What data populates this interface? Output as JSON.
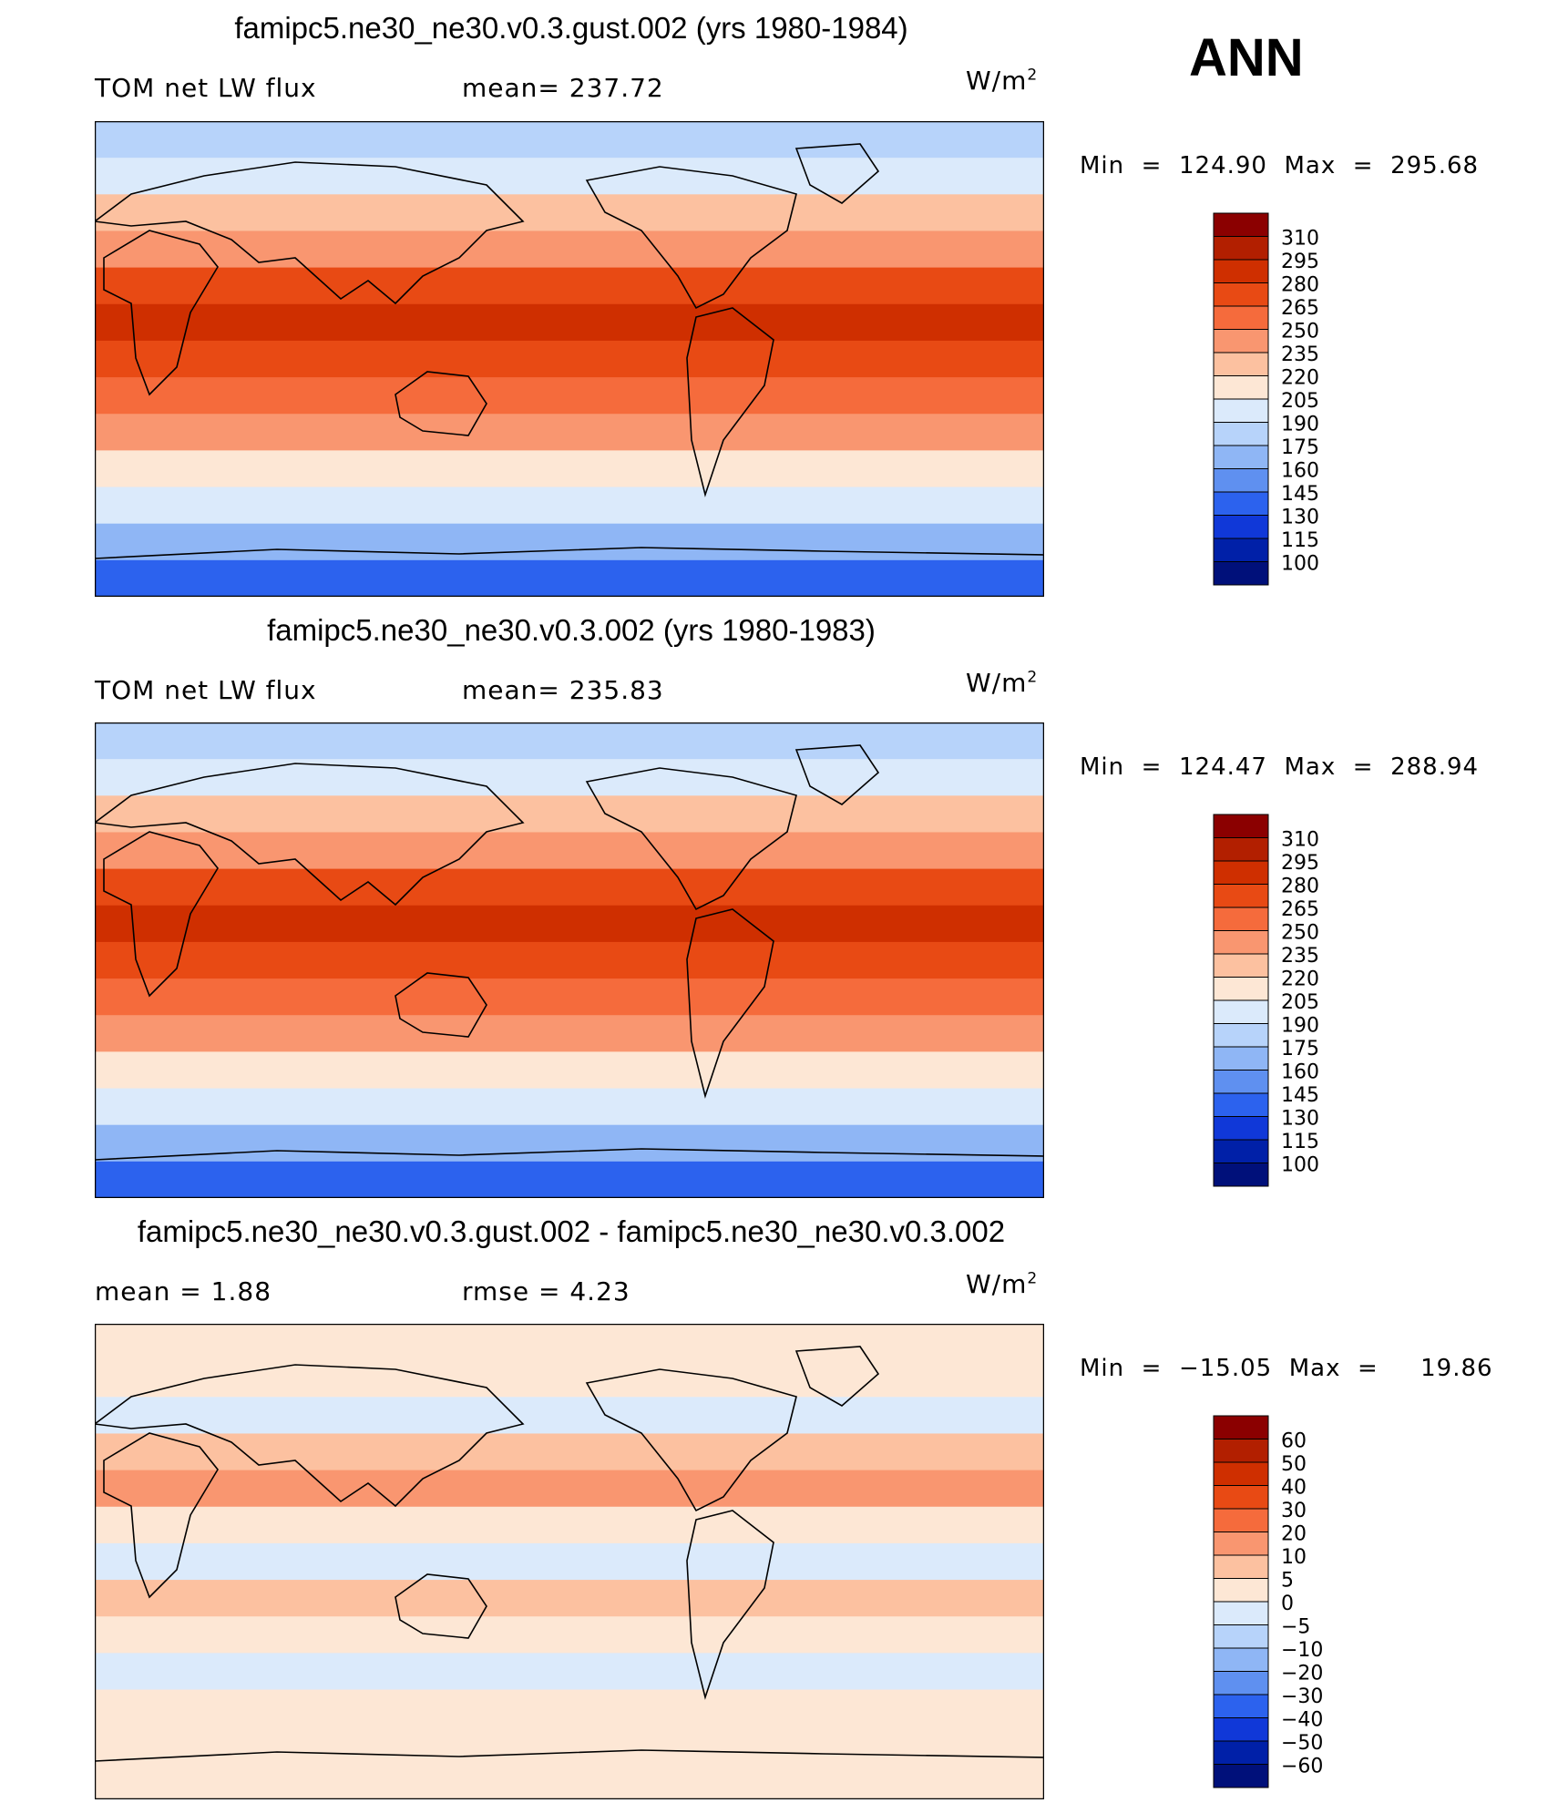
{
  "season": "ANN",
  "panels": [
    {
      "title": "famipc5.ne30_ne30.v0.3.gust.002 (yrs 1980-1984)",
      "left_label": "TOM net LW flux",
      "mid_label": "mean=  237.72",
      "units": "W/m",
      "units_sup": "2",
      "min_max": "Min  =  124.90  Max  =  295.68",
      "colorbar": "abs"
    },
    {
      "title": "famipc5.ne30_ne30.v0.3.002 (yrs 1980-1983)",
      "left_label": "TOM net LW flux",
      "mid_label": "mean=  235.83",
      "units": "W/m",
      "units_sup": "2",
      "min_max": "Min  =  124.47  Max  =  288.94",
      "colorbar": "abs"
    },
    {
      "title": "famipc5.ne30_ne30.v0.3.gust.002 - famipc5.ne30_ne30.v0.3.002",
      "left_label": "mean  =      1.88",
      "mid_label": "rmse  =      4.23",
      "units": "W/m",
      "units_sup": "2",
      "min_max": "Min  =  −15.05  Max  =     19.86",
      "colorbar": "diff"
    }
  ],
  "chart_data": {
    "type": "heatmap",
    "colorbars": {
      "abs": {
        "levels": [
          "310",
          "295",
          "280",
          "265",
          "250",
          "235",
          "220",
          "205",
          "190",
          "175",
          "160",
          "145",
          "130",
          "115",
          "100"
        ],
        "colors": [
          "#8b0000",
          "#b21f00",
          "#cf2f00",
          "#e84a14",
          "#f56b3c",
          "#f99670",
          "#fcc1a0",
          "#fde7d5",
          "#dbeafb",
          "#b7d3fa",
          "#8fb6f5",
          "#5f90f0",
          "#2c62ee",
          "#1038d8",
          "#0020a8",
          "#00107a"
        ]
      },
      "diff": {
        "levels": [
          "60",
          "50",
          "40",
          "30",
          "20",
          "10",
          "5",
          "0",
          "−5",
          "−10",
          "−20",
          "−30",
          "−40",
          "−50",
          "−60"
        ],
        "colors": [
          "#8b0000",
          "#b21f00",
          "#cf2f00",
          "#e84a14",
          "#f56b3c",
          "#f99670",
          "#fcc1a0",
          "#fde7d5",
          "#dbeafb",
          "#b7d3fa",
          "#8fb6f5",
          "#5f90f0",
          "#2c62ee",
          "#1038d8",
          "#0020a8",
          "#00107a"
        ]
      }
    },
    "field_bands": {
      "abs1": [
        "#b7d3fa",
        "#dbeafb",
        "#fcc1a0",
        "#f99670",
        "#e84a14",
        "#cf2f00",
        "#e84a14",
        "#f56b3c",
        "#f99670",
        "#fde7d5",
        "#dbeafb",
        "#8fb6f5",
        "#2c62ee"
      ],
      "abs2": [
        "#b7d3fa",
        "#dbeafb",
        "#fcc1a0",
        "#f99670",
        "#e84a14",
        "#cf2f00",
        "#e84a14",
        "#f56b3c",
        "#f99670",
        "#fde7d5",
        "#dbeafb",
        "#8fb6f5",
        "#2c62ee"
      ],
      "diff": [
        "#fde7d5",
        "#fde7d5",
        "#dbeafb",
        "#fcc1a0",
        "#f99670",
        "#fde7d5",
        "#dbeafb",
        "#fcc1a0",
        "#fde7d5",
        "#dbeafb",
        "#fde7d5",
        "#fde7d5",
        "#fde7d5"
      ]
    }
  }
}
